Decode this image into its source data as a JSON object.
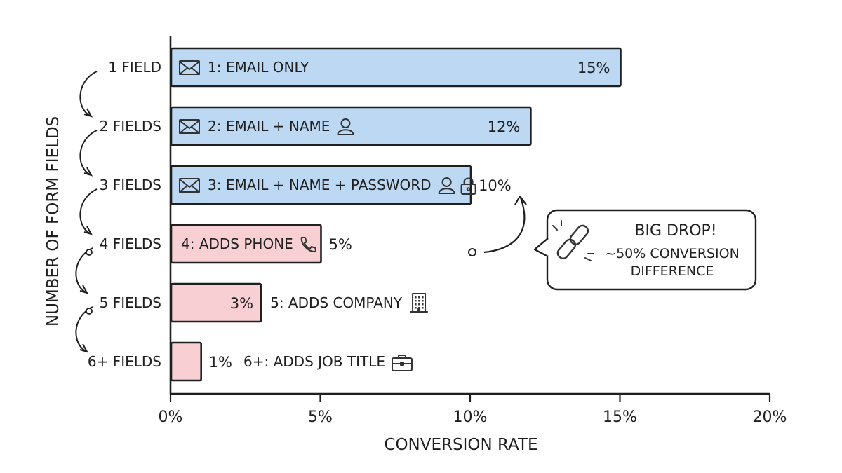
{
  "chart_data": {
    "type": "bar",
    "orientation": "horizontal",
    "categories": [
      "1 FIELD",
      "2 FIELDS",
      "3 FIELDS",
      "4 FIELDS",
      "5 FIELDS",
      "6+ FIELDS"
    ],
    "values": [
      15,
      12,
      10,
      5,
      3,
      1
    ],
    "value_labels": [
      "15%",
      "12%",
      "10%",
      "5%",
      "3%",
      "1%"
    ],
    "bar_labels": [
      "1: EMAIL ONLY",
      "2: EMAIL + NAME",
      "3: EMAIL + NAME + PASSWORD",
      "4: ADDS PHONE",
      "5: ADDS COMPANY",
      "6+: ADDS JOB TITLE"
    ],
    "bar_icons": [
      [
        "envelope-icon"
      ],
      [
        "envelope-icon",
        "person-icon"
      ],
      [
        "envelope-icon",
        "person-icon",
        "lock-icon"
      ],
      [
        "phone-icon"
      ],
      [
        "building-icon"
      ],
      [
        "briefcase-icon"
      ]
    ],
    "bar_colors": [
      "#bcd8f3",
      "#bcd8f3",
      "#bcd8f3",
      "#f8cfd2",
      "#f8cfd2",
      "#f8cfd2"
    ],
    "xlim": [
      0,
      20
    ],
    "x_ticks": [
      "0%",
      "5%",
      "10%",
      "15%",
      "20%"
    ],
    "xlabel": "CONVERSION RATE",
    "ylabel": "NUMBER OF FORM FIELDS",
    "grid": false,
    "annotation": {
      "title": "BIG DROP!",
      "lines": [
        "~50% CONVERSION",
        "DIFFERENCE"
      ],
      "icon": "broken-link-icon"
    }
  }
}
